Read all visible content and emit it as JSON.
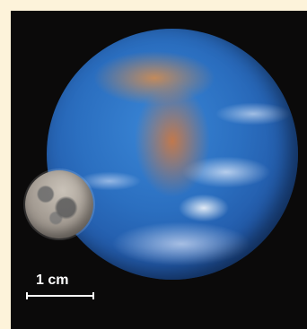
{
  "scale": {
    "label": "1 cm"
  },
  "colors": {
    "background": "#fdf3da",
    "frame": "#0b0a0a",
    "earth_ocean": "#2b6fc0",
    "moon": "#a39b92",
    "scale_bar": "#ffffff"
  }
}
